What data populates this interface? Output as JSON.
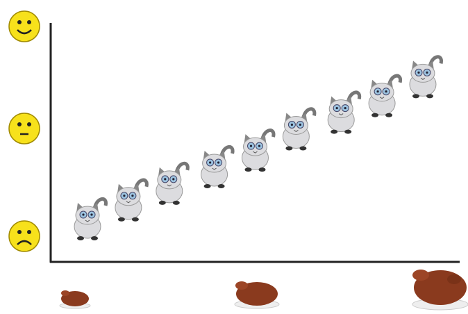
{
  "chart_data": {
    "type": "scatter",
    "x": [
      0.9,
      1.9,
      2.9,
      4.0,
      5.0,
      6.0,
      7.1,
      8.1,
      9.1
    ],
    "y": [
      1.7,
      2.5,
      3.2,
      3.9,
      4.6,
      5.5,
      6.2,
      6.9,
      7.7
    ],
    "xlim": [
      0,
      10
    ],
    "ylim": [
      0,
      10
    ],
    "color": "#dcdcdf"
  }
}
